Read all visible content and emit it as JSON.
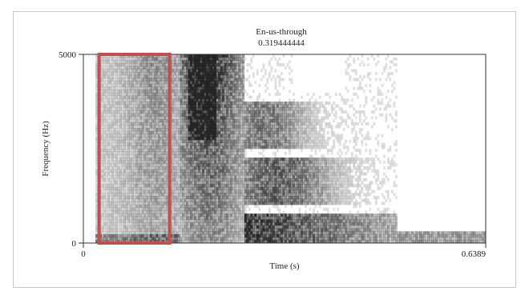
{
  "chart_data": {
    "type": "heatmap",
    "title": "En-us-through",
    "subtitle": "0.319444444",
    "xlabel": "Time (s)",
    "ylabel": "Frequency (Hz)",
    "xlim": [
      0,
      0.6389
    ],
    "ylim": [
      0,
      5000
    ],
    "x_ticks": [
      "0",
      "0.6389"
    ],
    "y_ticks": [
      "0",
      "5000"
    ],
    "highlight": {
      "x": [
        0.025,
        0.137
      ],
      "y": [
        0,
        5000
      ],
      "color": "#c0504d"
    },
    "colors": {
      "ink": "#111111",
      "highlight": "#c0504d",
      "background": "#ffffff"
    }
  }
}
